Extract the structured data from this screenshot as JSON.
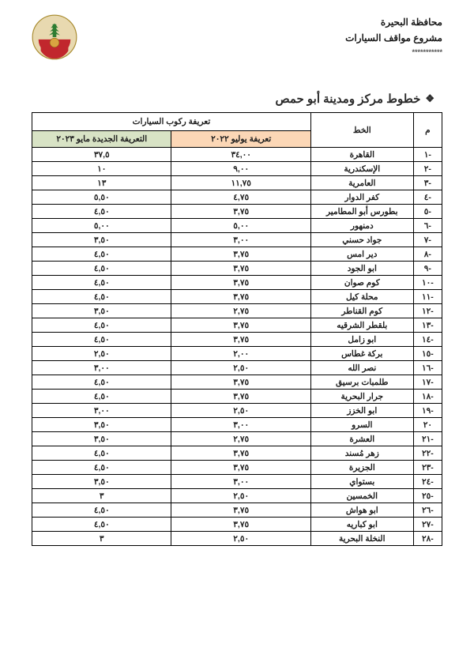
{
  "header": {
    "governorate": "محافظة البحيرة",
    "project": "مشروع مواقف السيارات",
    "stars": "***********"
  },
  "title": {
    "bullet": "❖",
    "text": "خطوط مركز ومدينة أبو حمص"
  },
  "table": {
    "headers": {
      "num": "م",
      "line": "الخط",
      "tariff_group": "تعريفة ركوب السيارات",
      "july": "تعريفة يوليو ٢٠٢٢",
      "may": "التعريفة الجديدة مايو ٢٠٢٣"
    },
    "colors": {
      "july_bg": "#fcd7b6",
      "may_bg": "#d8e3c5"
    },
    "rows": [
      {
        "n": "-١",
        "line": "القاهرة",
        "july": "٣٤,٠٠",
        "may": "٣٧,٥"
      },
      {
        "n": "-٢",
        "line": "الإسكندرية",
        "july": "٩,٠٠",
        "may": "١٠"
      },
      {
        "n": "-٣",
        "line": "العامرية",
        "july": "١١,٧٥",
        "may": "١٣"
      },
      {
        "n": "-٤",
        "line": "كفر الدوار",
        "july": "٤,٧٥",
        "may": "٥,٥٠"
      },
      {
        "n": "-٥",
        "line": "بطورس أبو المطامير",
        "july": "٣,٧٥",
        "may": "٤,٥٠"
      },
      {
        "n": "-٦",
        "line": "دمنهور",
        "july": "٥,٠٠",
        "may": "٥,٠٠"
      },
      {
        "n": "-٧",
        "line": "جواد حسني",
        "july": "٣,٠٠",
        "may": "٣,٥٠"
      },
      {
        "n": "-٨",
        "line": "دير امس",
        "july": "٣,٧٥",
        "may": "٤,٥٠"
      },
      {
        "n": "-٩",
        "line": "ابو الجود",
        "july": "٣,٧٥",
        "may": "٤,٥٠"
      },
      {
        "n": "-١٠",
        "line": "كوم صوان",
        "july": "٣,٧٥",
        "may": "٤,٥٠"
      },
      {
        "n": "-١١",
        "line": "محلة كيل",
        "july": "٣,٧٥",
        "may": "٤,٥٠"
      },
      {
        "n": "-١٢",
        "line": "كوم القناطر",
        "july": "٢,٧٥",
        "may": "٣,٥٠"
      },
      {
        "n": "-١٣",
        "line": "بلقطر الشرقيه",
        "july": "٣,٧٥",
        "may": "٤,٥٠"
      },
      {
        "n": "-١٤",
        "line": "ابو زامل",
        "july": "٣,٧٥",
        "may": "٤,٥٠"
      },
      {
        "n": "-١٥",
        "line": "بركة غطاس",
        "july": "٢,٠٠",
        "may": "٢,٥٠"
      },
      {
        "n": "-١٦",
        "line": "نصر الله",
        "july": "٢,٥٠",
        "may": "٣,٠٠"
      },
      {
        "n": "-١٧",
        "line": "طلمبات برسيق",
        "july": "٣,٧٥",
        "may": "٤,٥٠"
      },
      {
        "n": "-١٨",
        "line": "جرار البحرية",
        "july": "٣,٧٥",
        "may": "٤,٥٠"
      },
      {
        "n": "-١٩",
        "line": "ابو الخزز",
        "july": "٢,٥٠",
        "may": "٣,٠٠"
      },
      {
        "n": "٢٠",
        "line": "السرو",
        "july": "٣,٠٠",
        "may": "٣,٥٠"
      },
      {
        "n": "-٢١",
        "line": "العشرة",
        "july": "٢,٧٥",
        "may": "٣,٥٠"
      },
      {
        "n": "-٢٢",
        "line": "زهر مُسند",
        "july": "٣,٧٥",
        "may": "٤,٥٠"
      },
      {
        "n": "-٢٣",
        "line": "الجزيرة",
        "july": "٣,٧٥",
        "may": "٤,٥٠"
      },
      {
        "n": "-٢٤",
        "line": "بستواي",
        "july": "٣,٠٠",
        "may": "٣,٥٠"
      },
      {
        "n": "-٢٥",
        "line": "الخمسين",
        "july": "٢,٥٠",
        "may": "٣"
      },
      {
        "n": "-٢٦",
        "line": "ابو هواش",
        "july": "٣,٧٥",
        "may": "٤,٥٠"
      },
      {
        "n": "-٢٧",
        "line": "ابو كباريه",
        "july": "٣,٧٥",
        "may": "٤,٥٠"
      },
      {
        "n": "-٢٨",
        "line": "النخلة البحرية",
        "july": "٢,٥٠",
        "may": "٣"
      }
    ]
  }
}
